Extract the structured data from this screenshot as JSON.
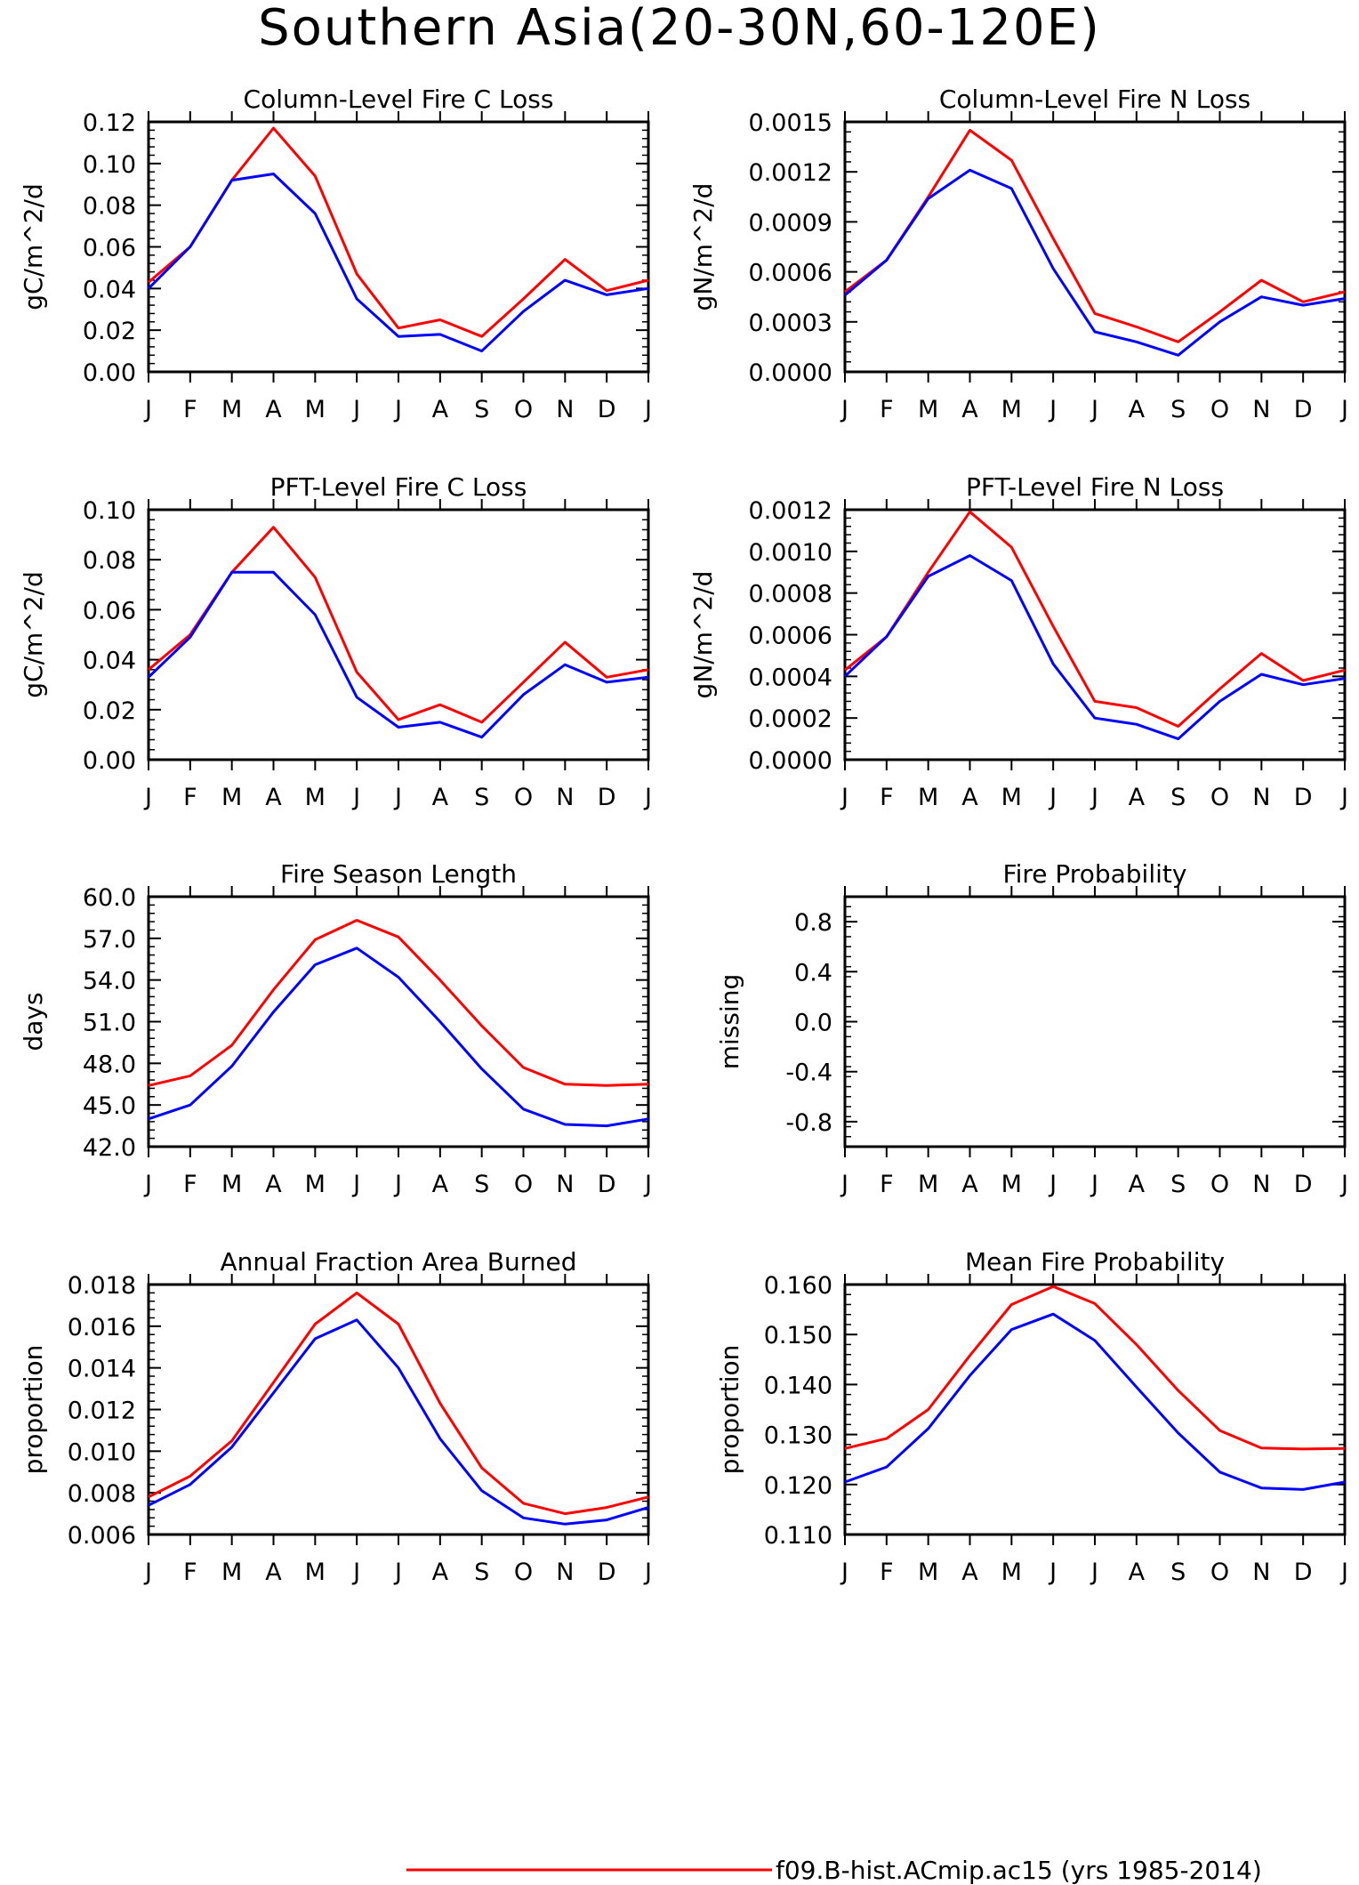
{
  "figure": {
    "title": "Southern Asia(20-30N,60-120E)",
    "legend": {
      "entries": [
        {
          "label": "f09.B-hist.ACmip.ac15 (yrs 1985-2014)",
          "color": "#ff0000"
        }
      ],
      "placement": "bottom-center"
    }
  },
  "chart_data": [
    {
      "type": "line",
      "title": "Column-Level Fire C Loss",
      "ylabel": "gC/m^2/d",
      "xlabel": "",
      "categories": [
        "J",
        "F",
        "M",
        "A",
        "M",
        "J",
        "J",
        "A",
        "S",
        "O",
        "N",
        "D",
        "J"
      ],
      "ylim": [
        0,
        0.12
      ],
      "yticks": [
        "0.00",
        "0.02",
        "0.04",
        "0.06",
        "0.08",
        "0.10",
        "0.12"
      ],
      "series": [
        {
          "color": "#ff0000",
          "values": [
            0.043,
            0.06,
            0.092,
            0.117,
            0.094,
            0.047,
            0.021,
            0.025,
            0.017,
            0.035,
            0.054,
            0.039,
            0.044
          ]
        },
        {
          "color": "#0000ff",
          "values": [
            0.04,
            0.06,
            0.092,
            0.095,
            0.076,
            0.035,
            0.017,
            0.018,
            0.01,
            0.029,
            0.044,
            0.037,
            0.04
          ]
        }
      ]
    },
    {
      "type": "line",
      "title": "Column-Level Fire N Loss",
      "ylabel": "gN/m^2/d",
      "xlabel": "",
      "categories": [
        "J",
        "F",
        "M",
        "A",
        "M",
        "J",
        "J",
        "A",
        "S",
        "O",
        "N",
        "D",
        "J"
      ],
      "ylim": [
        0,
        0.0015
      ],
      "yticks": [
        "0.0000",
        "0.0003",
        "0.0006",
        "0.0009",
        "0.0012",
        "0.0015"
      ],
      "series": [
        {
          "color": "#ff0000",
          "values": [
            0.00048,
            0.00067,
            0.00105,
            0.00145,
            0.00127,
            0.0008,
            0.00035,
            0.00027,
            0.00018,
            0.00036,
            0.00055,
            0.00042,
            0.00048
          ]
        },
        {
          "color": "#0000ff",
          "values": [
            0.00046,
            0.00067,
            0.00104,
            0.00121,
            0.0011,
            0.00062,
            0.00024,
            0.00018,
            0.0001,
            0.0003,
            0.00045,
            0.0004,
            0.00044
          ]
        }
      ]
    },
    {
      "type": "line",
      "title": "PFT-Level Fire C Loss",
      "ylabel": "gC/m^2/d",
      "xlabel": "",
      "categories": [
        "J",
        "F",
        "M",
        "A",
        "M",
        "J",
        "J",
        "A",
        "S",
        "O",
        "N",
        "D",
        "J"
      ],
      "ylim": [
        0,
        0.1
      ],
      "yticks": [
        "0.00",
        "0.02",
        "0.04",
        "0.06",
        "0.08",
        "0.10"
      ],
      "series": [
        {
          "color": "#ff0000",
          "values": [
            0.036,
            0.05,
            0.075,
            0.093,
            0.073,
            0.035,
            0.016,
            0.022,
            0.015,
            0.031,
            0.047,
            0.033,
            0.036
          ]
        },
        {
          "color": "#0000ff",
          "values": [
            0.033,
            0.049,
            0.075,
            0.075,
            0.058,
            0.025,
            0.013,
            0.015,
            0.009,
            0.026,
            0.038,
            0.031,
            0.033
          ]
        }
      ]
    },
    {
      "type": "line",
      "title": "PFT-Level Fire N Loss",
      "ylabel": "gN/m^2/d",
      "xlabel": "",
      "categories": [
        "J",
        "F",
        "M",
        "A",
        "M",
        "J",
        "J",
        "A",
        "S",
        "O",
        "N",
        "D",
        "J"
      ],
      "ylim": [
        0,
        0.0012
      ],
      "yticks": [
        "0.0000",
        "0.0002",
        "0.0004",
        "0.0006",
        "0.0008",
        "0.0010",
        "0.0012"
      ],
      "series": [
        {
          "color": "#ff0000",
          "values": [
            0.00043,
            0.00059,
            0.0009,
            0.00119,
            0.00102,
            0.00064,
            0.00028,
            0.00025,
            0.00016,
            0.00034,
            0.00051,
            0.00038,
            0.00043
          ]
        },
        {
          "color": "#0000ff",
          "values": [
            0.0004,
            0.00059,
            0.00088,
            0.00098,
            0.00086,
            0.00046,
            0.0002,
            0.00017,
            0.0001,
            0.00028,
            0.00041,
            0.00036,
            0.00039
          ]
        }
      ]
    },
    {
      "type": "line",
      "title": "Fire Season Length",
      "ylabel": "days",
      "xlabel": "",
      "categories": [
        "J",
        "F",
        "M",
        "A",
        "M",
        "J",
        "J",
        "A",
        "S",
        "O",
        "N",
        "D",
        "J"
      ],
      "ylim": [
        42,
        60
      ],
      "yticks": [
        "42.0",
        "45.0",
        "48.0",
        "51.0",
        "54.0",
        "57.0",
        "60.0"
      ],
      "series": [
        {
          "color": "#ff0000",
          "values": [
            46.4,
            47.1,
            49.3,
            53.3,
            56.9,
            58.3,
            57.1,
            54.0,
            50.7,
            47.7,
            46.5,
            46.4,
            46.5
          ]
        },
        {
          "color": "#0000ff",
          "values": [
            44.0,
            45.0,
            47.8,
            51.7,
            55.1,
            56.3,
            54.2,
            51.0,
            47.6,
            44.7,
            43.6,
            43.5,
            44.0
          ]
        }
      ]
    },
    {
      "type": "line",
      "title": "Fire Probability",
      "ylabel": "missing",
      "xlabel": "",
      "categories": [
        "J",
        "F",
        "M",
        "A",
        "M",
        "J",
        "J",
        "A",
        "S",
        "O",
        "N",
        "D",
        "J"
      ],
      "ylim": [
        -1,
        1
      ],
      "yticks": [
        "-0.8",
        "-0.4",
        "0.0",
        "0.4",
        "0.8"
      ],
      "series": []
    },
    {
      "type": "line",
      "title": "Annual Fraction Area Burned",
      "ylabel": "proportion",
      "xlabel": "",
      "categories": [
        "J",
        "F",
        "M",
        "A",
        "M",
        "J",
        "J",
        "A",
        "S",
        "O",
        "N",
        "D",
        "J"
      ],
      "ylim": [
        0.006,
        0.018
      ],
      "yticks": [
        "0.006",
        "0.008",
        "0.010",
        "0.012",
        "0.014",
        "0.016",
        "0.018"
      ],
      "series": [
        {
          "color": "#ff0000",
          "values": [
            0.0078,
            0.0088,
            0.0105,
            0.0133,
            0.0161,
            0.0176,
            0.0161,
            0.0123,
            0.0092,
            0.0075,
            0.007,
            0.0073,
            0.0078
          ]
        },
        {
          "color": "#0000ff",
          "values": [
            0.0074,
            0.0084,
            0.0102,
            0.0128,
            0.0154,
            0.0163,
            0.014,
            0.0106,
            0.0081,
            0.0068,
            0.0065,
            0.0067,
            0.0073
          ]
        }
      ]
    },
    {
      "type": "line",
      "title": "Mean Fire Probability",
      "ylabel": "proportion",
      "xlabel": "",
      "categories": [
        "J",
        "F",
        "M",
        "A",
        "M",
        "J",
        "J",
        "A",
        "S",
        "O",
        "N",
        "D",
        "J"
      ],
      "ylim": [
        0.11,
        0.16
      ],
      "yticks": [
        "0.110",
        "0.120",
        "0.130",
        "0.140",
        "0.150",
        "0.160"
      ],
      "series": [
        {
          "color": "#ff0000",
          "values": [
            0.1272,
            0.1292,
            0.135,
            0.1458,
            0.156,
            0.1596,
            0.1562,
            0.148,
            0.1388,
            0.1308,
            0.1273,
            0.1271,
            0.1272
          ]
        },
        {
          "color": "#0000ff",
          "values": [
            0.1205,
            0.1235,
            0.1312,
            0.1418,
            0.151,
            0.1541,
            0.1488,
            0.1395,
            0.1303,
            0.1225,
            0.1193,
            0.119,
            0.1205
          ]
        }
      ]
    }
  ]
}
